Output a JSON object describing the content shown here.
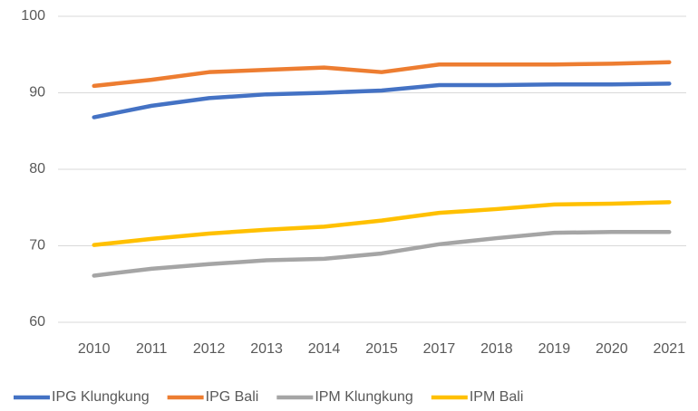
{
  "chart_data": {
    "type": "line",
    "categories": [
      "2010",
      "2011",
      "2012",
      "2013",
      "2014",
      "2015",
      "2017",
      "2018",
      "2019",
      "2020",
      "2021"
    ],
    "series": [
      {
        "name": "IPG Klungkung",
        "color": "#4472c4",
        "values": [
          86.8,
          88.3,
          89.3,
          89.8,
          90.0,
          90.3,
          91.0,
          91.0,
          91.1,
          91.1,
          91.2
        ]
      },
      {
        "name": "IPG Bali",
        "color": "#ed7d31",
        "values": [
          90.9,
          91.7,
          92.7,
          93.0,
          93.3,
          92.7,
          93.7,
          93.7,
          93.7,
          93.8,
          94.0
        ]
      },
      {
        "name": "IPM Klungkung",
        "color": "#a5a5a5",
        "values": [
          66.1,
          67.0,
          67.6,
          68.1,
          68.3,
          69.0,
          70.2,
          71.0,
          71.7,
          71.8,
          71.8
        ]
      },
      {
        "name": "IPM Bali",
        "color": "#ffc000",
        "values": [
          70.1,
          70.9,
          71.6,
          72.1,
          72.5,
          73.3,
          74.3,
          74.8,
          75.4,
          75.5,
          75.7
        ]
      }
    ],
    "ylim": [
      60,
      100
    ],
    "yticks": [
      60,
      70,
      80,
      90,
      100
    ],
    "grid": true,
    "legend": "bottom"
  }
}
